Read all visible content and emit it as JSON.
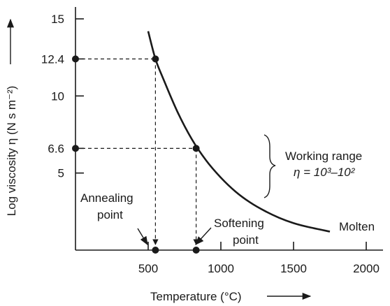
{
  "chart_data": {
    "type": "line",
    "title": "",
    "xlabel": "Temperature (°C)",
    "ylabel": "Log viscosity η (N s m⁻²)",
    "xlim": [
      0,
      2000
    ],
    "ylim": [
      0,
      15
    ],
    "x_ticks": [
      "500",
      "1000",
      "1500",
      "2000"
    ],
    "y_ticks": [
      "5",
      "10",
      "15"
    ],
    "y_marked_ticks": [
      "6.6",
      "12.4"
    ],
    "grid": false,
    "series": [
      {
        "name": "",
        "x": [
          500,
          550,
          600,
          700,
          800,
          900,
          1000,
          1100,
          1200,
          1300,
          1400,
          1500,
          1600,
          1750
        ],
        "y": [
          14.2,
          12.4,
          11.2,
          9.0,
          7.2,
          5.8,
          4.7,
          3.8,
          3.1,
          2.55,
          2.1,
          1.75,
          1.5,
          1.2
        ]
      }
    ],
    "markers": [
      {
        "x": 550,
        "y": 12.4
      },
      {
        "x": 830,
        "y": 6.6
      },
      {
        "x": 0,
        "y": 12.4
      },
      {
        "x": 0,
        "y": 6.6
      },
      {
        "x": 550,
        "y": 0
      },
      {
        "x": 830,
        "y": 0
      }
    ],
    "annotations": {
      "annealing": [
        "Annealing",
        "point"
      ],
      "softening": [
        "Softening",
        "point"
      ],
      "working_range": "Working range",
      "working_range_eq": "η = 10³–10²",
      "molten": "Molten"
    }
  }
}
